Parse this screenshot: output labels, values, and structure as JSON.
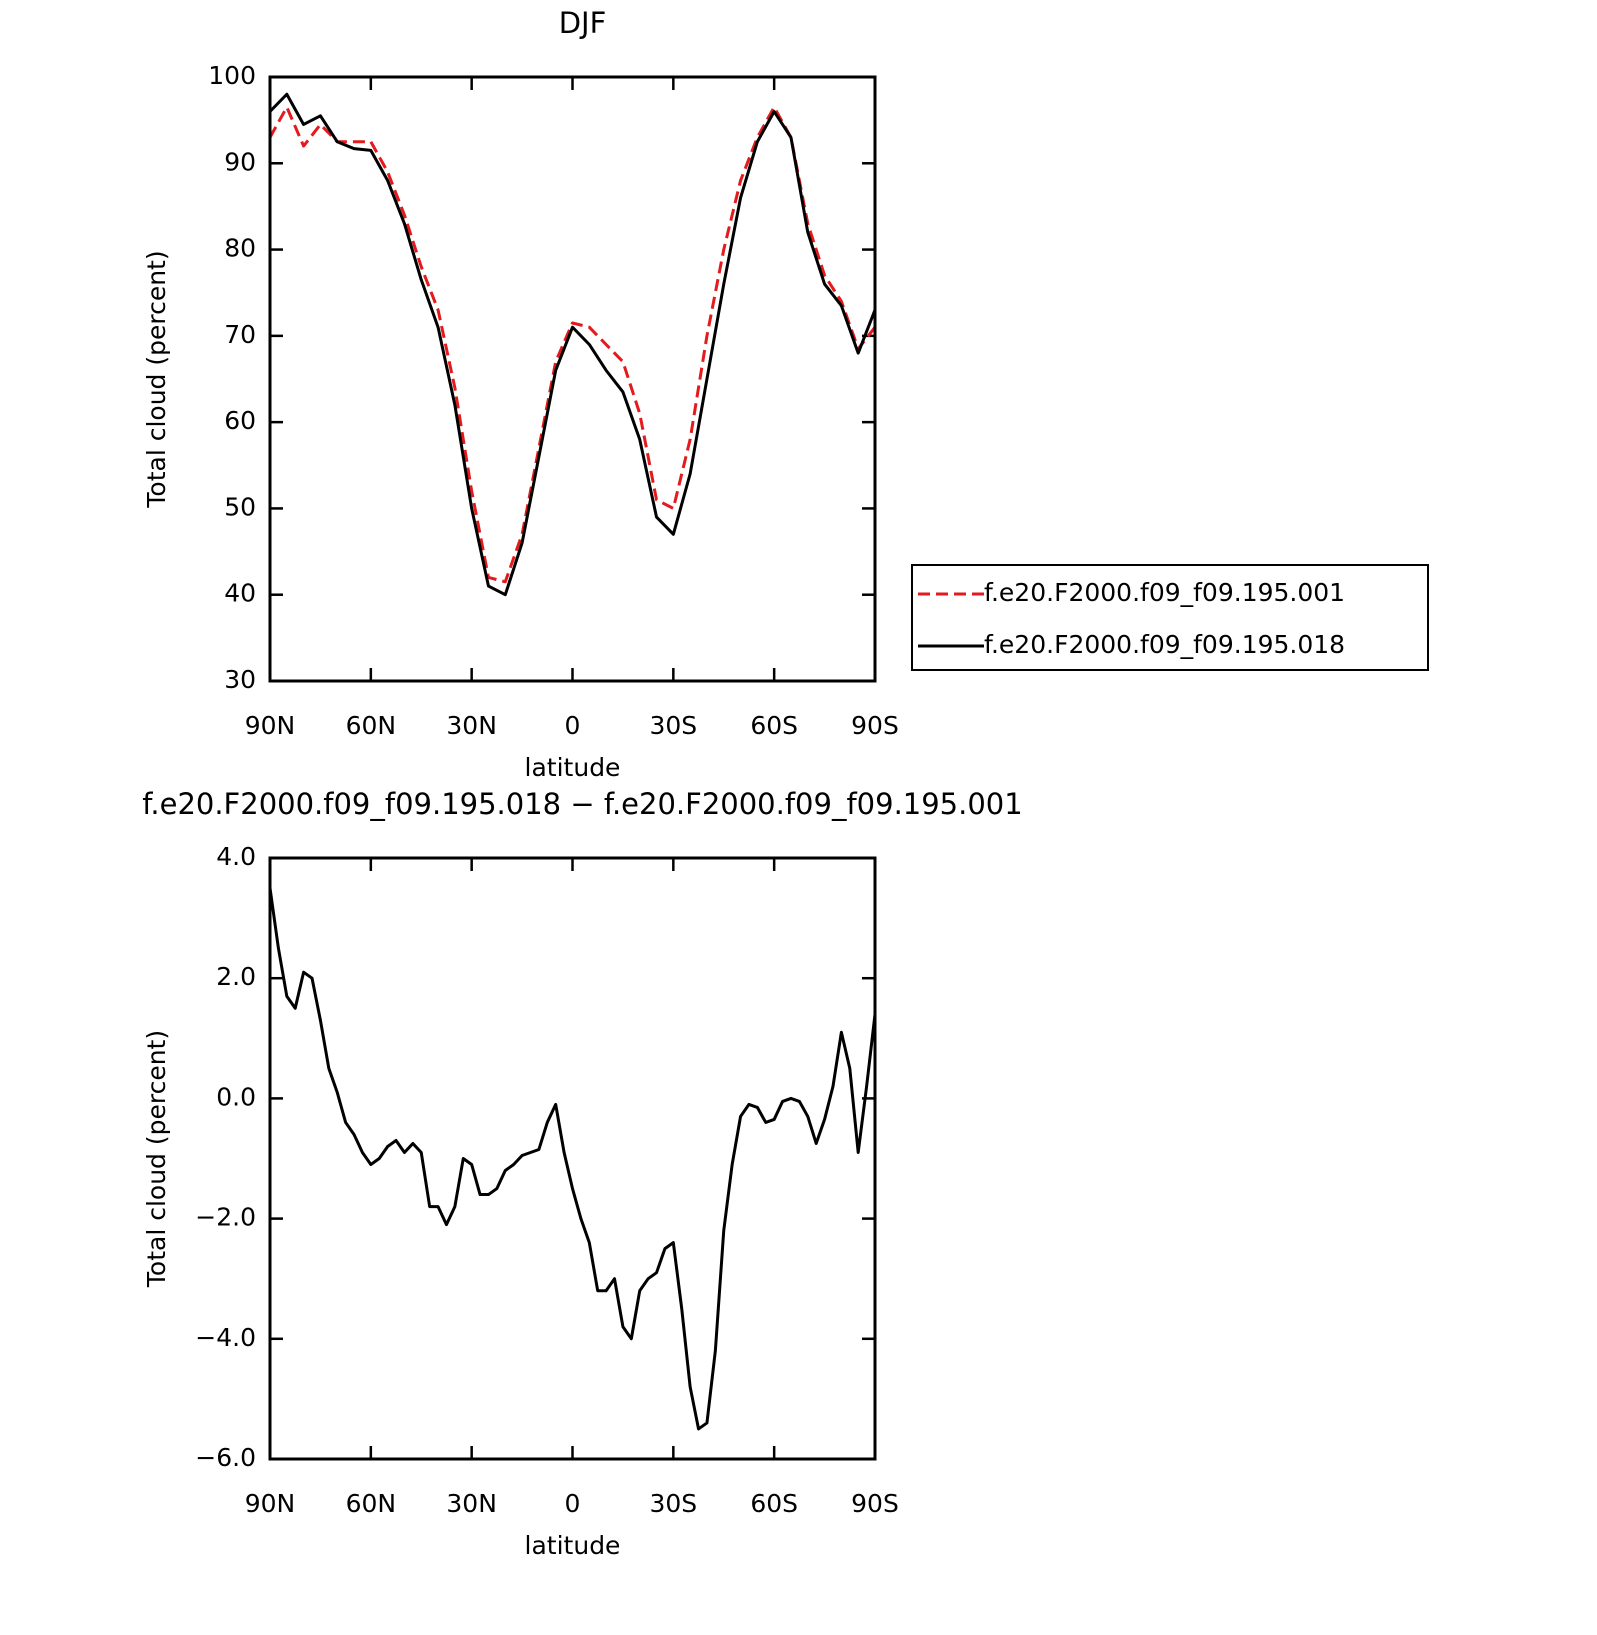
{
  "chart_data": [
    {
      "type": "line",
      "title": "DJF",
      "xlabel": "latitude",
      "ylabel": "Total cloud (percent)",
      "x": [
        90,
        85,
        80,
        75,
        70,
        65,
        60,
        55,
        50,
        45,
        40,
        35,
        30,
        25,
        20,
        15,
        10,
        5,
        0,
        -5,
        -10,
        -15,
        -20,
        -25,
        -30,
        -35,
        -40,
        -45,
        -50,
        -55,
        -60,
        -65,
        -70,
        -75,
        -80,
        -85,
        -90
      ],
      "series": [
        {
          "name": "f.e20.F2000.f09_f09.195.001",
          "color": "#e41a1c",
          "linestyle": "dashed",
          "values": [
            93,
            96.5,
            92,
            94.5,
            92.5,
            92.5,
            92.5,
            89,
            84,
            78,
            73,
            64,
            52,
            42,
            41.5,
            47,
            57,
            67,
            71.5,
            71,
            69,
            67,
            61,
            51,
            50,
            58,
            70,
            80,
            88,
            93,
            96.5,
            93,
            83,
            77,
            74,
            68.5,
            71
          ]
        },
        {
          "name": "f.e20.F2000.f09_f09.195.018",
          "color": "#000000",
          "linestyle": "solid",
          "values": [
            96,
            98,
            94.5,
            95.5,
            92.5,
            91.7,
            91.5,
            88,
            83,
            76.5,
            71,
            62,
            50,
            41,
            40,
            46,
            56,
            66,
            71,
            69,
            66,
            63.5,
            58,
            49,
            47,
            54,
            65,
            76,
            86,
            92.5,
            96,
            93,
            82,
            76,
            73.5,
            68,
            73
          ]
        }
      ],
      "xlim": [
        90,
        -90
      ],
      "xticks": [
        {
          "value": 90,
          "label": "90N"
        },
        {
          "value": 60,
          "label": "60N"
        },
        {
          "value": 30,
          "label": "30N"
        },
        0,
        {
          "value": -30,
          "label": "30S"
        },
        {
          "value": -60,
          "label": "60S"
        },
        {
          "value": -90,
          "label": "90S"
        }
      ],
      "ylim": [
        30,
        100
      ],
      "yticks": [
        30,
        40,
        50,
        60,
        70,
        80,
        90,
        100
      ],
      "legend": "right"
    },
    {
      "type": "line",
      "title": "f.e20.F2000.f09_f09.195.018 − f.e20.F2000.f09_f09.195.001",
      "xlabel": "latitude",
      "ylabel": "Total cloud (percent)",
      "x": [
        90,
        87.5,
        85,
        82.5,
        80,
        77.5,
        75,
        72.5,
        70,
        67.5,
        65,
        62.5,
        60,
        57.5,
        55,
        52.5,
        50,
        47.5,
        45,
        42.5,
        40,
        37.5,
        35,
        32.5,
        30,
        27.5,
        25,
        22.5,
        20,
        17.5,
        15,
        12.5,
        10,
        7.5,
        5,
        2.5,
        0,
        -2.5,
        -5,
        -7.5,
        -10,
        -12.5,
        -15,
        -17.5,
        -20,
        -22.5,
        -25,
        -27.5,
        -30,
        -32.5,
        -35,
        -37.5,
        -40,
        -42.5,
        -45,
        -47.5,
        -50,
        -52.5,
        -55,
        -57.5,
        -60,
        -62.5,
        -65,
        -67.5,
        -70,
        -72.5,
        -75,
        -77.5,
        -80,
        -82.5,
        -85,
        -87.5,
        -90
      ],
      "values": [
        3.5,
        2.5,
        1.7,
        1.5,
        2.1,
        2.0,
        1.3,
        0.5,
        0.1,
        -0.4,
        -0.6,
        -0.9,
        -1.1,
        -1.0,
        -0.8,
        -0.7,
        -0.9,
        -0.75,
        -0.9,
        -1.8,
        -1.8,
        -2.1,
        -1.8,
        -1.0,
        -1.1,
        -1.6,
        -1.6,
        -1.5,
        -1.2,
        -1.1,
        -0.95,
        -0.9,
        -0.85,
        -0.4,
        -0.1,
        -0.9,
        -1.5,
        -2.0,
        -2.4,
        -3.2,
        -3.2,
        -3.0,
        -3.8,
        -4.0,
        -3.2,
        -3.0,
        -2.9,
        -2.5,
        -2.4,
        -3.5,
        -4.8,
        -5.5,
        -5.4,
        -4.2,
        -2.2,
        -1.1,
        -0.3,
        -0.1,
        -0.15,
        -0.4,
        -0.35,
        -0.05,
        0,
        -0.05,
        -0.3,
        -0.75,
        -0.35,
        0.2,
        1.1,
        0.5,
        -0.9,
        0.2,
        1.4
      ],
      "color": "#000000",
      "xlim": [
        90,
        -90
      ],
      "xticks": [
        {
          "value": 90,
          "label": "90N"
        },
        {
          "value": 60,
          "label": "60N"
        },
        {
          "value": 30,
          "label": "30N"
        },
        0,
        {
          "value": -30,
          "label": "30S"
        },
        {
          "value": -60,
          "label": "60S"
        },
        {
          "value": -90,
          "label": "90S"
        }
      ],
      "ylim": [
        -6,
        4
      ],
      "yticks": [
        {
          "value": -6,
          "label": "−6.0"
        },
        {
          "value": -4,
          "label": "−4.0"
        },
        {
          "value": -2,
          "label": "−2.0"
        },
        {
          "value": 0,
          "label": "0.0"
        },
        {
          "value": 2,
          "label": "2.0"
        },
        {
          "value": 4,
          "label": "4.0"
        }
      ]
    }
  ]
}
